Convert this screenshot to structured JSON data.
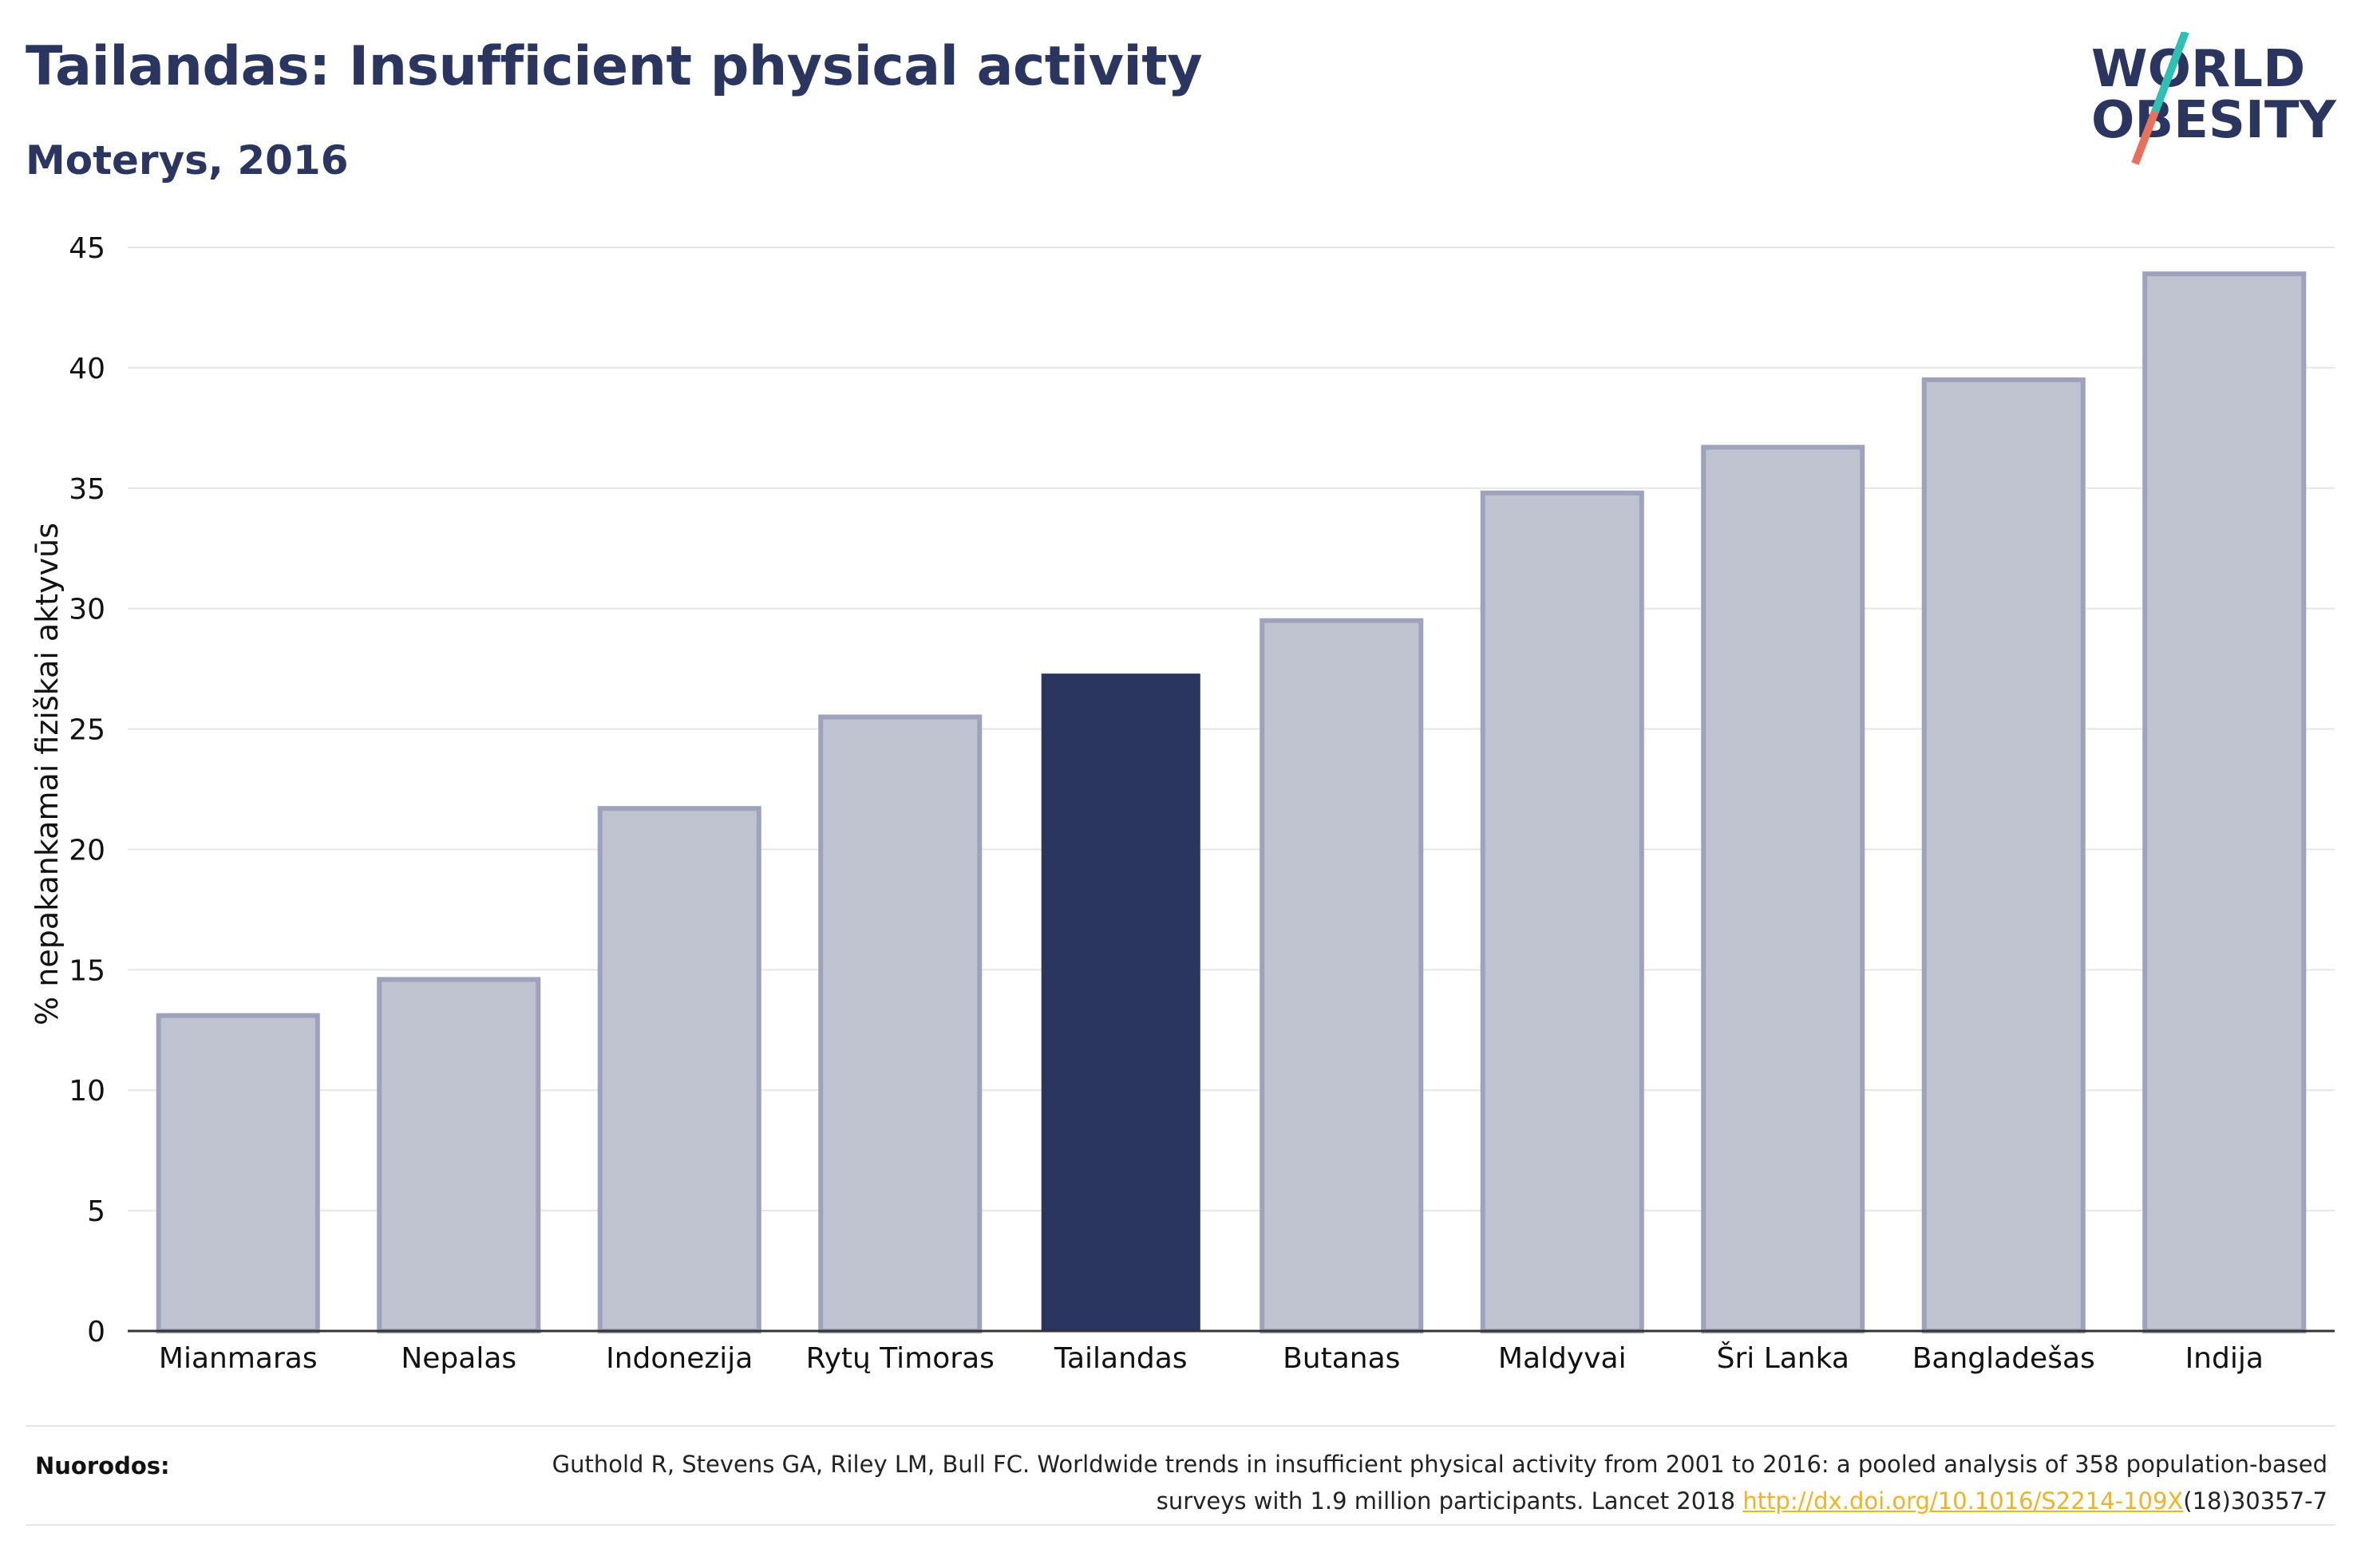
{
  "header": {
    "title": "Tailandas: Insufficient physical activity",
    "subtitle": "Moterys, 2016"
  },
  "logo": {
    "line1": "WORLD",
    "line2": "OBESITY"
  },
  "colors": {
    "highlight": "#2a365f",
    "bar_fill": "#bfc2cf",
    "bar_stroke": "#9ea3bb",
    "grid": "#e6e6e6",
    "axis": "#333333",
    "logo_text": "#2a365f",
    "logo_slash_top": "#2fbfb3",
    "logo_slash_bottom": "#e8715e",
    "link": "#f0b323"
  },
  "chart_data": {
    "type": "bar",
    "title": "Tailandas: Insufficient physical activity",
    "subtitle": "Moterys, 2016",
    "xlabel": "",
    "ylabel": "% nepakankamai fiziškai aktyvūs",
    "categories": [
      "Mianmaras",
      "Nepalas",
      "Indonezija",
      "Rytų Timoras",
      "Tailandas",
      "Butanas",
      "Maldyvai",
      "Šri Lanka",
      "Bangladešas",
      "Indija"
    ],
    "values": [
      13.1,
      14.6,
      21.7,
      25.5,
      27.3,
      29.5,
      34.8,
      36.7,
      39.5,
      43.9
    ],
    "highlight": "Tailandas",
    "ylim": [
      0,
      45
    ],
    "yticks": [
      0,
      5,
      10,
      15,
      20,
      25,
      30,
      35,
      40,
      45
    ],
    "grid": true,
    "legend": "none"
  },
  "references": {
    "label": "Nuorodos:",
    "text_before": "Guthold R, Stevens GA, Riley LM, Bull FC. Worldwide trends in insufficient physical activity from 2001 to 2016: a pooled analysis of 358 population-based surveys with 1.9 million participants. Lancet 2018 ",
    "link": "http://dx.doi.org/10.1016/S2214-109X",
    "text_after": "(18)30357-7"
  }
}
